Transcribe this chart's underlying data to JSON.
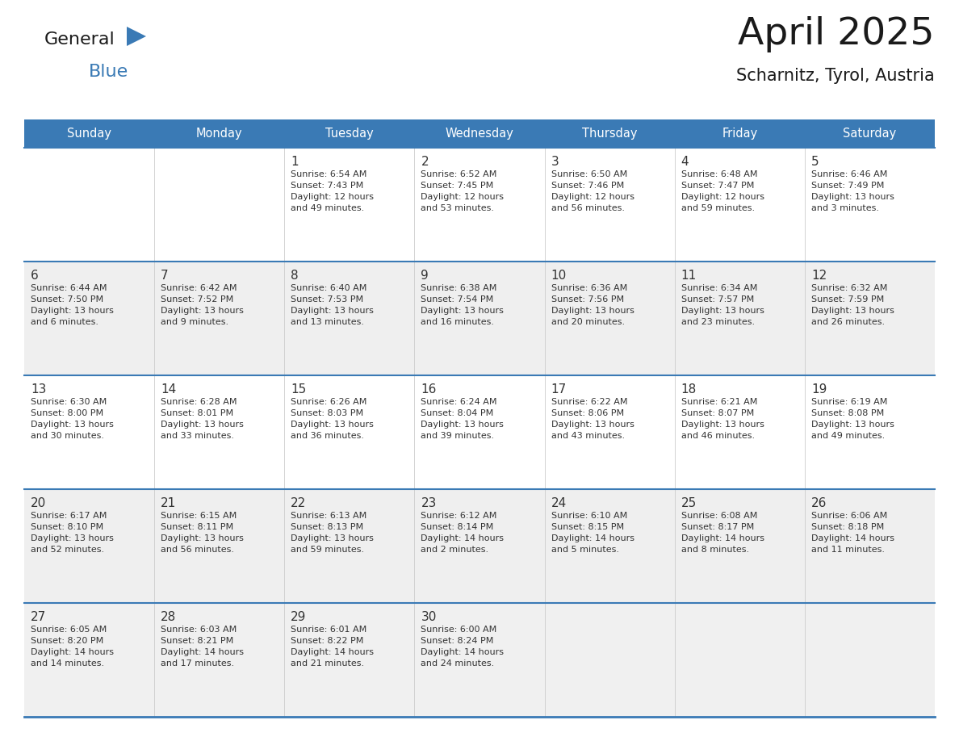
{
  "title": "April 2025",
  "subtitle": "Scharnitz, Tyrol, Austria",
  "header_bg": "#3a7ab5",
  "header_text": "#ffffff",
  "row_bg_light": "#f0f0f0",
  "row_bg_white": "#ffffff",
  "border_color": "#3a7ab5",
  "cell_sep_color": "#cccccc",
  "day_headers": [
    "Sunday",
    "Monday",
    "Tuesday",
    "Wednesday",
    "Thursday",
    "Friday",
    "Saturday"
  ],
  "text_color": "#333333",
  "weeks": [
    [
      {
        "day": null,
        "text": ""
      },
      {
        "day": null,
        "text": ""
      },
      {
        "day": "1",
        "text": "Sunrise: 6:54 AM\nSunset: 7:43 PM\nDaylight: 12 hours\nand 49 minutes."
      },
      {
        "day": "2",
        "text": "Sunrise: 6:52 AM\nSunset: 7:45 PM\nDaylight: 12 hours\nand 53 minutes."
      },
      {
        "day": "3",
        "text": "Sunrise: 6:50 AM\nSunset: 7:46 PM\nDaylight: 12 hours\nand 56 minutes."
      },
      {
        "day": "4",
        "text": "Sunrise: 6:48 AM\nSunset: 7:47 PM\nDaylight: 12 hours\nand 59 minutes."
      },
      {
        "day": "5",
        "text": "Sunrise: 6:46 AM\nSunset: 7:49 PM\nDaylight: 13 hours\nand 3 minutes."
      }
    ],
    [
      {
        "day": "6",
        "text": "Sunrise: 6:44 AM\nSunset: 7:50 PM\nDaylight: 13 hours\nand 6 minutes."
      },
      {
        "day": "7",
        "text": "Sunrise: 6:42 AM\nSunset: 7:52 PM\nDaylight: 13 hours\nand 9 minutes."
      },
      {
        "day": "8",
        "text": "Sunrise: 6:40 AM\nSunset: 7:53 PM\nDaylight: 13 hours\nand 13 minutes."
      },
      {
        "day": "9",
        "text": "Sunrise: 6:38 AM\nSunset: 7:54 PM\nDaylight: 13 hours\nand 16 minutes."
      },
      {
        "day": "10",
        "text": "Sunrise: 6:36 AM\nSunset: 7:56 PM\nDaylight: 13 hours\nand 20 minutes."
      },
      {
        "day": "11",
        "text": "Sunrise: 6:34 AM\nSunset: 7:57 PM\nDaylight: 13 hours\nand 23 minutes."
      },
      {
        "day": "12",
        "text": "Sunrise: 6:32 AM\nSunset: 7:59 PM\nDaylight: 13 hours\nand 26 minutes."
      }
    ],
    [
      {
        "day": "13",
        "text": "Sunrise: 6:30 AM\nSunset: 8:00 PM\nDaylight: 13 hours\nand 30 minutes."
      },
      {
        "day": "14",
        "text": "Sunrise: 6:28 AM\nSunset: 8:01 PM\nDaylight: 13 hours\nand 33 minutes."
      },
      {
        "day": "15",
        "text": "Sunrise: 6:26 AM\nSunset: 8:03 PM\nDaylight: 13 hours\nand 36 minutes."
      },
      {
        "day": "16",
        "text": "Sunrise: 6:24 AM\nSunset: 8:04 PM\nDaylight: 13 hours\nand 39 minutes."
      },
      {
        "day": "17",
        "text": "Sunrise: 6:22 AM\nSunset: 8:06 PM\nDaylight: 13 hours\nand 43 minutes."
      },
      {
        "day": "18",
        "text": "Sunrise: 6:21 AM\nSunset: 8:07 PM\nDaylight: 13 hours\nand 46 minutes."
      },
      {
        "day": "19",
        "text": "Sunrise: 6:19 AM\nSunset: 8:08 PM\nDaylight: 13 hours\nand 49 minutes."
      }
    ],
    [
      {
        "day": "20",
        "text": "Sunrise: 6:17 AM\nSunset: 8:10 PM\nDaylight: 13 hours\nand 52 minutes."
      },
      {
        "day": "21",
        "text": "Sunrise: 6:15 AM\nSunset: 8:11 PM\nDaylight: 13 hours\nand 56 minutes."
      },
      {
        "day": "22",
        "text": "Sunrise: 6:13 AM\nSunset: 8:13 PM\nDaylight: 13 hours\nand 59 minutes."
      },
      {
        "day": "23",
        "text": "Sunrise: 6:12 AM\nSunset: 8:14 PM\nDaylight: 14 hours\nand 2 minutes."
      },
      {
        "day": "24",
        "text": "Sunrise: 6:10 AM\nSunset: 8:15 PM\nDaylight: 14 hours\nand 5 minutes."
      },
      {
        "day": "25",
        "text": "Sunrise: 6:08 AM\nSunset: 8:17 PM\nDaylight: 14 hours\nand 8 minutes."
      },
      {
        "day": "26",
        "text": "Sunrise: 6:06 AM\nSunset: 8:18 PM\nDaylight: 14 hours\nand 11 minutes."
      }
    ],
    [
      {
        "day": "27",
        "text": "Sunrise: 6:05 AM\nSunset: 8:20 PM\nDaylight: 14 hours\nand 14 minutes."
      },
      {
        "day": "28",
        "text": "Sunrise: 6:03 AM\nSunset: 8:21 PM\nDaylight: 14 hours\nand 17 minutes."
      },
      {
        "day": "29",
        "text": "Sunrise: 6:01 AM\nSunset: 8:22 PM\nDaylight: 14 hours\nand 21 minutes."
      },
      {
        "day": "30",
        "text": "Sunrise: 6:00 AM\nSunset: 8:24 PM\nDaylight: 14 hours\nand 24 minutes."
      },
      {
        "day": null,
        "text": ""
      },
      {
        "day": null,
        "text": ""
      },
      {
        "day": null,
        "text": ""
      }
    ]
  ],
  "week_row_bgs": [
    "#ffffff",
    "#efefef",
    "#ffffff",
    "#efefef",
    "#f5f5f5"
  ]
}
